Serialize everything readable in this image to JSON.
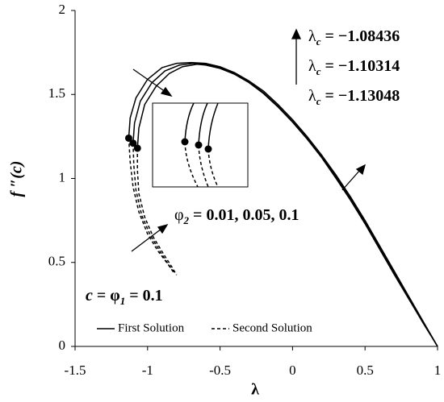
{
  "chart_data": {
    "type": "line",
    "xlabel": "λ",
    "ylabel": "f ″(c)",
    "xlim": [
      -1.5,
      1
    ],
    "ylim": [
      0,
      2
    ],
    "xticks": [
      -1.5,
      -1,
      -0.5,
      0,
      0.5,
      1
    ],
    "yticks": [
      0,
      0.5,
      1,
      1.5,
      2
    ],
    "legend": [
      {
        "name": "First Solution",
        "dashed": false
      },
      {
        "name": "Second Solution",
        "dashed": true
      }
    ],
    "series": [
      {
        "dashed": false,
        "color": "#000000",
        "x": [
          -1.13,
          -1.12,
          -1.08,
          -1.0,
          -0.9,
          -0.8,
          -0.7,
          -0.6,
          -0.5,
          -0.4,
          -0.3,
          -0.2,
          -0.1,
          0,
          0.1,
          0.2,
          0.3,
          0.4,
          0.5,
          0.6,
          0.7,
          0.8,
          0.9,
          1
        ],
        "values": [
          1.24,
          1.36,
          1.48,
          1.59,
          1.66,
          1.685,
          1.69,
          1.685,
          1.665,
          1.63,
          1.58,
          1.52,
          1.44,
          1.35,
          1.25,
          1.14,
          1.02,
          0.89,
          0.75,
          0.6,
          0.45,
          0.3,
          0.15,
          0
        ]
      },
      {
        "dashed": false,
        "color": "#000000",
        "x": [
          -1.1,
          -1.09,
          -1.05,
          -0.97,
          -0.88,
          -0.78,
          -0.68,
          -0.6,
          -0.5,
          -0.4,
          -0.3,
          -0.2,
          -0.1,
          0,
          0.1,
          0.2,
          0.3,
          0.4,
          0.5,
          0.6,
          0.7,
          0.8,
          0.9,
          1
        ],
        "values": [
          1.21,
          1.33,
          1.46,
          1.57,
          1.64,
          1.675,
          1.685,
          1.68,
          1.66,
          1.625,
          1.575,
          1.51,
          1.43,
          1.34,
          1.24,
          1.13,
          1.01,
          0.88,
          0.74,
          0.59,
          0.44,
          0.29,
          0.145,
          0
        ]
      },
      {
        "dashed": false,
        "color": "#000000",
        "x": [
          -1.07,
          -1.06,
          -1.02,
          -0.94,
          -0.85,
          -0.76,
          -0.66,
          -0.6,
          -0.5,
          -0.4,
          -0.3,
          -0.2,
          -0.1,
          0,
          0.1,
          0.2,
          0.3,
          0.4,
          0.5,
          0.6,
          0.7,
          0.8,
          0.9,
          1
        ],
        "values": [
          1.18,
          1.3,
          1.44,
          1.55,
          1.625,
          1.665,
          1.68,
          1.675,
          1.655,
          1.62,
          1.57,
          1.505,
          1.425,
          1.335,
          1.235,
          1.125,
          1.0,
          0.87,
          0.73,
          0.58,
          0.43,
          0.285,
          0.14,
          0
        ]
      },
      {
        "dashed": true,
        "color": "#000000",
        "x": [
          -1.13,
          -1.12,
          -1.1,
          -1.06,
          -1.0,
          -0.93,
          -0.86,
          -0.82
        ],
        "values": [
          1.24,
          1.1,
          0.95,
          0.8,
          0.67,
          0.57,
          0.49,
          0.44
        ]
      },
      {
        "dashed": true,
        "color": "#000000",
        "x": [
          -1.1,
          -1.095,
          -1.08,
          -1.04,
          -0.98,
          -0.91,
          -0.85,
          -0.81
        ],
        "values": [
          1.21,
          1.08,
          0.93,
          0.78,
          0.66,
          0.56,
          0.48,
          0.435
        ]
      },
      {
        "dashed": true,
        "color": "#000000",
        "x": [
          -1.07,
          -1.07,
          -1.06,
          -1.02,
          -0.96,
          -0.89,
          -0.83,
          -0.8
        ],
        "values": [
          1.18,
          1.05,
          0.91,
          0.77,
          0.65,
          0.55,
          0.47,
          0.425
        ]
      }
    ],
    "critical_points": {
      "x": [
        -1.13,
        -1.1,
        -1.07
      ],
      "values": [
        1.24,
        1.21,
        1.18
      ]
    },
    "lambda_labels": [
      {
        "symbol": "λ",
        "subscript": "c",
        "rest": " = −1.08436"
      },
      {
        "symbol": "λ",
        "subscript": "c",
        "rest": " = −1.10314"
      },
      {
        "symbol": "λ",
        "subscript": "c",
        "rest": " = −1.13048"
      }
    ],
    "phi2_label": {
      "symbol": "φ",
      "subscript": "2",
      "rest": " = 0.01, 0.05, 0.1"
    },
    "phi1_label": {
      "lead": "c",
      "symbol": " = φ",
      "subscript": "1",
      "rest": " = 0.1"
    }
  }
}
